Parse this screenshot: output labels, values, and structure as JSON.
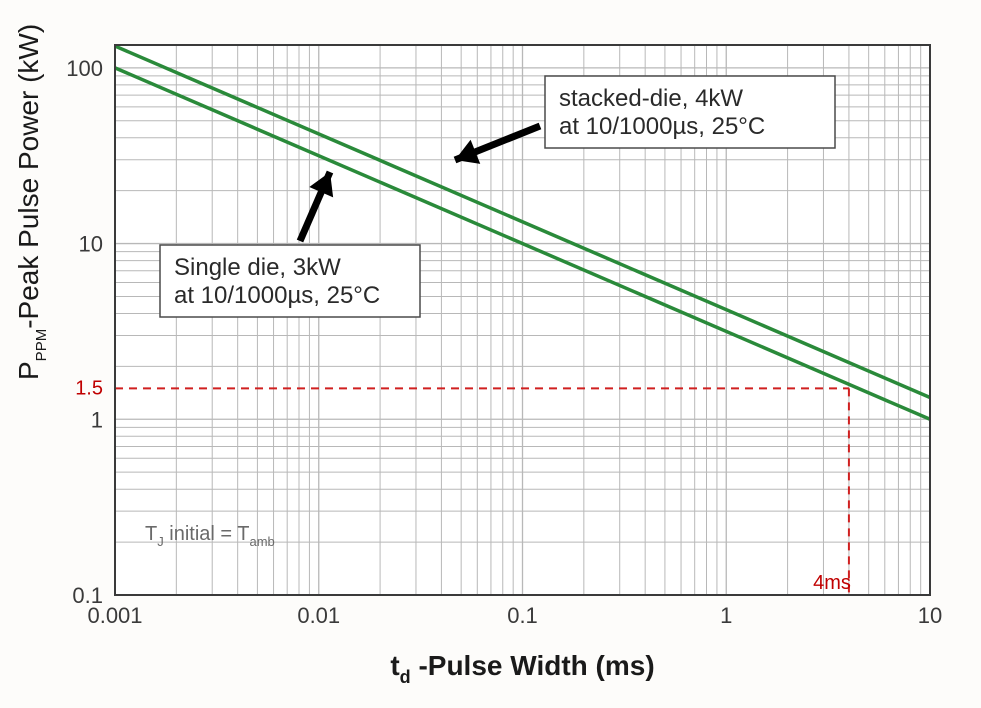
{
  "chart": {
    "type": "line-loglog",
    "background_color": "#fdfcfa",
    "plot_bg": "#ffffff",
    "plot_border_color": "#3a3a3a",
    "plot_border_width": 2,
    "grid_color": "#b8b8b8",
    "grid_width": 1,
    "x": {
      "label": "t",
      "label_sub": "d",
      "label_rest": " -Pulse Width (ms)",
      "min_exp": -3,
      "max_exp": 1,
      "tick_labels": [
        "0.001",
        "0.01",
        "0.1",
        "1",
        "10"
      ],
      "label_fontsize": 28
    },
    "y": {
      "label_pre": "P",
      "label_sub": "PPM",
      "label_rest": "-Peak Pulse Power (kW)",
      "min_exp": -1,
      "max_exp": 2.13,
      "tick_labels": [
        "0.1",
        "1",
        "10",
        "100"
      ],
      "label_fontsize": 28
    },
    "series": [
      {
        "name": "stacked-die",
        "color": "#2a8a3a",
        "width": 3.5,
        "x": [
          0.001,
          10
        ],
        "y": [
          133,
          1.33
        ]
      },
      {
        "name": "single-die",
        "color": "#2a8a3a",
        "width": 3.5,
        "x": [
          0.001,
          10
        ],
        "y": [
          100,
          1.0
        ]
      }
    ],
    "reference_lines": {
      "color": "#d02020",
      "dash": "8,6",
      "width": 2,
      "y_value": 1.5,
      "y_label": "1.5",
      "x_value": 4,
      "x_label": "4ms"
    },
    "annotations": {
      "stacked": {
        "lines": [
          "stacked-die, 4kW",
          "at 10/1000µs, 25°C"
        ],
        "box": true
      },
      "single": {
        "lines": [
          "Single die, 3kW",
          "at 10/1000µs, 25°C"
        ],
        "box": true
      },
      "tj_note": "T   initial = T",
      "tj_sub1": "J",
      "tj_sub2": "amb"
    },
    "arrow_color": "#000000"
  }
}
